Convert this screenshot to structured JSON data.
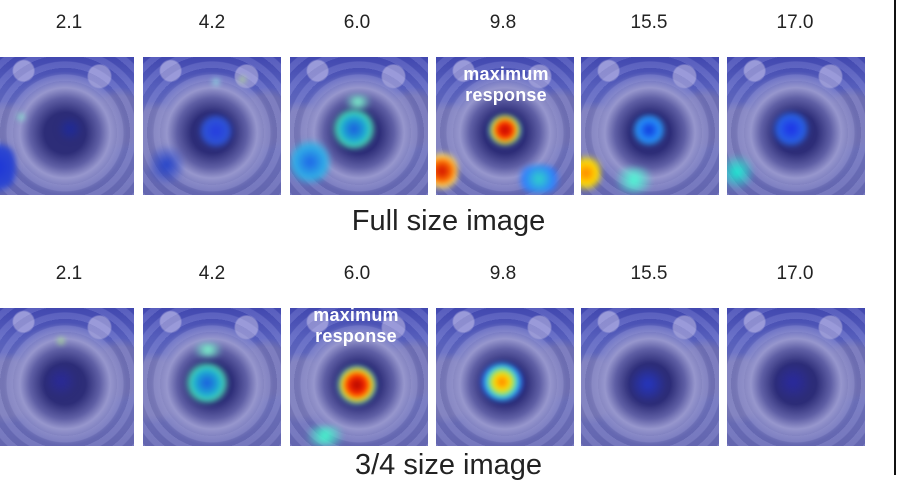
{
  "full": {
    "labels": [
      "2.1",
      "4.2",
      "6.0",
      "9.8",
      "15.5",
      "17.0"
    ],
    "caption": "Full size image",
    "overlay_line1": "maximum",
    "overlay_line2": "response"
  },
  "three_quarter": {
    "labels": [
      "2.1",
      "4.2",
      "6.0",
      "9.8",
      "15.5",
      "17.0"
    ],
    "caption": "3/4 size image",
    "overlay_line1": "maximum",
    "overlay_line2": "response"
  }
}
